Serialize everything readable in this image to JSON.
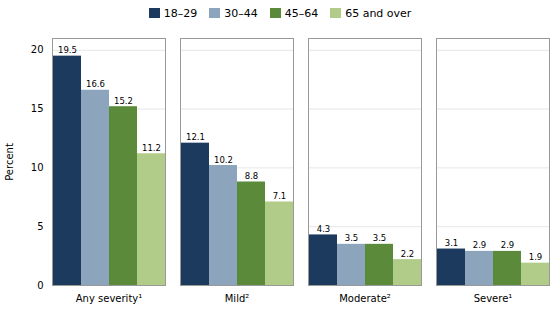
{
  "chart_data": {
    "type": "bar",
    "categories": [
      "Any severity¹",
      "Mild²",
      "Moderate²",
      "Severe¹"
    ],
    "series": [
      {
        "name": "18–29",
        "color": "#1b3a5e",
        "values": [
          19.5,
          12.1,
          4.3,
          3.1
        ]
      },
      {
        "name": "30–44",
        "color": "#8da5bc",
        "values": [
          16.6,
          10.2,
          3.5,
          2.9
        ]
      },
      {
        "name": "45–64",
        "color": "#5a8a3a",
        "values": [
          15.2,
          8.8,
          3.5,
          2.9
        ]
      },
      {
        "name": "65 and over",
        "color": "#b0cc88",
        "values": [
          11.2,
          7.1,
          2.2,
          1.9
        ]
      }
    ],
    "ylabel": "Percent",
    "ylim": [
      0,
      21
    ],
    "yticks": [
      0,
      5,
      10,
      15,
      20
    ],
    "grid": true,
    "data_labels": true,
    "legend": "top"
  }
}
